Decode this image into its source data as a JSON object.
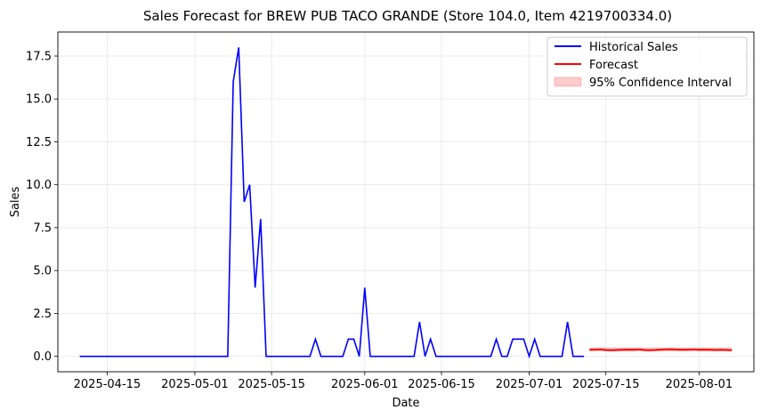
{
  "chart_data": {
    "type": "line",
    "title": "Sales Forecast for BREW PUB TACO GRANDE (Store 104.0, Item 4219700334.0)",
    "xlabel": "Date",
    "ylabel": "Sales",
    "xlim": [
      "2025-04-06",
      "2025-08-11"
    ],
    "ylim": [
      -0.9,
      18.9
    ],
    "x_ticks": [
      "2025-04-15",
      "2025-05-01",
      "2025-05-15",
      "2025-06-01",
      "2025-06-15",
      "2025-07-01",
      "2025-07-15",
      "2025-08-01"
    ],
    "y_ticks": [
      0.0,
      2.5,
      5.0,
      7.5,
      10.0,
      12.5,
      15.0,
      17.5
    ],
    "y_tick_labels": [
      "0.0",
      "2.5",
      "5.0",
      "7.5",
      "10.0",
      "12.5",
      "15.0",
      "17.5"
    ],
    "grid": true,
    "legend_position": "top-right",
    "series": [
      {
        "name": "Historical Sales",
        "color": "#0000ff",
        "points": [
          [
            "2025-04-10",
            0
          ],
          [
            "2025-05-07",
            0
          ],
          [
            "2025-05-08",
            16
          ],
          [
            "2025-05-09",
            18
          ],
          [
            "2025-05-10",
            9
          ],
          [
            "2025-05-11",
            10
          ],
          [
            "2025-05-12",
            4
          ],
          [
            "2025-05-13",
            8
          ],
          [
            "2025-05-14",
            0
          ],
          [
            "2025-05-22",
            0
          ],
          [
            "2025-05-23",
            1
          ],
          [
            "2025-05-24",
            0
          ],
          [
            "2025-05-28",
            0
          ],
          [
            "2025-05-29",
            1
          ],
          [
            "2025-05-30",
            1
          ],
          [
            "2025-05-31",
            0
          ],
          [
            "2025-06-01",
            4
          ],
          [
            "2025-06-02",
            0
          ],
          [
            "2025-06-10",
            0
          ],
          [
            "2025-06-11",
            2
          ],
          [
            "2025-06-12",
            0
          ],
          [
            "2025-06-13",
            1
          ],
          [
            "2025-06-14",
            0
          ],
          [
            "2025-06-24",
            0
          ],
          [
            "2025-06-25",
            1
          ],
          [
            "2025-06-26",
            0
          ],
          [
            "2025-06-27",
            0
          ],
          [
            "2025-06-28",
            1
          ],
          [
            "2025-06-30",
            1
          ],
          [
            "2025-07-01",
            0
          ],
          [
            "2025-07-02",
            1
          ],
          [
            "2025-07-03",
            0
          ],
          [
            "2025-07-07",
            0
          ],
          [
            "2025-07-08",
            2
          ],
          [
            "2025-07-09",
            0
          ],
          [
            "2025-07-11",
            0
          ]
        ]
      },
      {
        "name": "Forecast",
        "color": "#ff0000",
        "points": [
          [
            "2025-07-12",
            0.38
          ],
          [
            "2025-07-13",
            0.39
          ],
          [
            "2025-07-14",
            0.4
          ],
          [
            "2025-07-15",
            0.37
          ],
          [
            "2025-07-16",
            0.36
          ],
          [
            "2025-07-17",
            0.37
          ],
          [
            "2025-07-18",
            0.38
          ],
          [
            "2025-07-19",
            0.39
          ],
          [
            "2025-07-20",
            0.38
          ],
          [
            "2025-07-21",
            0.4
          ],
          [
            "2025-07-22",
            0.37
          ],
          [
            "2025-07-23",
            0.36
          ],
          [
            "2025-07-24",
            0.37
          ],
          [
            "2025-07-25",
            0.39
          ],
          [
            "2025-07-26",
            0.4
          ],
          [
            "2025-07-27",
            0.41
          ],
          [
            "2025-07-28",
            0.39
          ],
          [
            "2025-07-29",
            0.38
          ],
          [
            "2025-07-30",
            0.39
          ],
          [
            "2025-07-31",
            0.4
          ],
          [
            "2025-08-01",
            0.38
          ],
          [
            "2025-08-02",
            0.39
          ],
          [
            "2025-08-03",
            0.38
          ],
          [
            "2025-08-04",
            0.37
          ],
          [
            "2025-08-05",
            0.38
          ],
          [
            "2025-08-06",
            0.37
          ],
          [
            "2025-08-07",
            0.36
          ]
        ]
      }
    ],
    "confidence_interval": {
      "name": "95% Confidence Interval",
      "color": "#ff0000",
      "opacity": 0.2,
      "x_start": "2025-07-12",
      "x_end": "2025-08-07",
      "lower": 0.28,
      "upper": 0.52
    }
  }
}
